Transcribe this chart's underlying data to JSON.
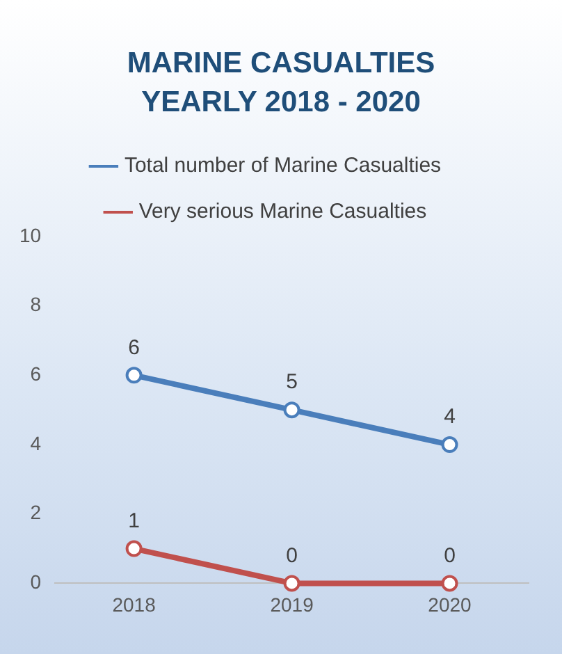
{
  "chart_data": {
    "type": "line",
    "title": "MARINE CASUALTIES YEARLY 2018 - 2020",
    "categories": [
      "2018",
      "2019",
      "2020"
    ],
    "series": [
      {
        "name": "Total number of Marine Casualties",
        "color": "#4a7ebb",
        "values": [
          6,
          5,
          4
        ]
      },
      {
        "name": "Very serious Marine Casualties",
        "color": "#c0504d",
        "values": [
          1,
          0,
          0
        ]
      }
    ],
    "ylim": [
      0,
      10
    ],
    "yticks": [
      0,
      2,
      4,
      6,
      8,
      10
    ],
    "grid": false,
    "legend": "top",
    "marker": "circle",
    "line_style": "solid",
    "data_labels": true
  }
}
